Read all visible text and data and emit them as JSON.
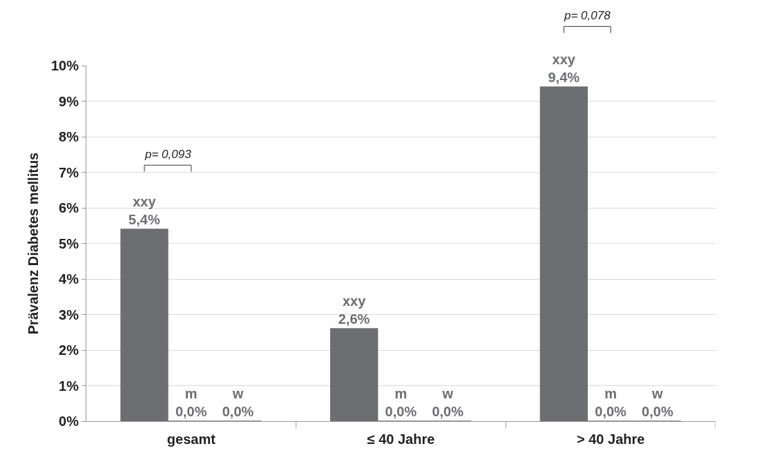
{
  "chart_data": {
    "type": "bar",
    "ylabel": "Prävalenz Diabetes mellitus",
    "categories": [
      "gesamt",
      "≤ 40 Jahre",
      "> 40 Jahre"
    ],
    "series": [
      {
        "name": "xxy",
        "color": "#6d6e71",
        "values": [
          5.4,
          2.6,
          9.4
        ],
        "value_labels": [
          "5,4%",
          "2,6%",
          "9,4%"
        ]
      },
      {
        "name": "m",
        "color": "#6d6e71",
        "values": [
          0,
          0,
          0
        ],
        "value_labels": [
          "0,0%",
          "0,0%",
          "0,0%"
        ]
      },
      {
        "name": "w",
        "color": "#6d6e71",
        "values": [
          0,
          0,
          0
        ],
        "value_labels": [
          "0,0%",
          "0,0%",
          "0,0%"
        ]
      }
    ],
    "ylim": [
      0,
      10
    ],
    "yticks": [
      {
        "value": 0,
        "label": "0%"
      },
      {
        "value": 1,
        "label": "1%"
      },
      {
        "value": 2,
        "label": "2%"
      },
      {
        "value": 3,
        "label": "3%"
      },
      {
        "value": 4,
        "label": "4%"
      },
      {
        "value": 5,
        "label": "5%"
      },
      {
        "value": 6,
        "label": "6%"
      },
      {
        "value": 7,
        "label": "7%"
      },
      {
        "value": 8,
        "label": "8%"
      },
      {
        "value": 9,
        "label": "9%"
      },
      {
        "value": 10,
        "label": "10%"
      }
    ],
    "grid": "y",
    "legend": false,
    "annotations": [
      "p= 0,093",
      "p= 0,078"
    ]
  }
}
